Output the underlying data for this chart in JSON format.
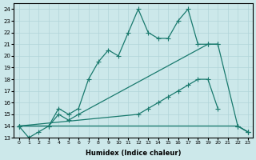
{
  "xlabel": "Humidex (Indice chaleur)",
  "xlim": [
    -0.5,
    23.5
  ],
  "ylim": [
    13,
    24.5
  ],
  "xticks": [
    0,
    1,
    2,
    3,
    4,
    5,
    6,
    7,
    8,
    9,
    10,
    11,
    12,
    13,
    14,
    15,
    16,
    17,
    18,
    19,
    20,
    21,
    22,
    23
  ],
  "yticks": [
    13,
    14,
    15,
    16,
    17,
    18,
    19,
    20,
    21,
    22,
    23,
    24
  ],
  "bg_color": "#cce8ea",
  "grid_color": "#b0d4d8",
  "line_color": "#1a7a6e",
  "s1x": [
    0,
    1,
    2,
    3,
    4,
    5,
    6,
    7,
    8,
    9,
    10,
    11,
    12,
    13,
    14,
    15,
    16,
    17,
    18,
    19,
    20
  ],
  "s1y": [
    14,
    13,
    13.5,
    14,
    15.5,
    15,
    15.5,
    18,
    19.5,
    20.5,
    20,
    22,
    24,
    22,
    21.5,
    21.5,
    23,
    24,
    21,
    21,
    21
  ],
  "s2x": [
    0,
    3,
    4,
    5,
    6,
    19,
    20,
    22,
    23
  ],
  "s2y": [
    14,
    14,
    15,
    14.5,
    15,
    21,
    21,
    14,
    13.5
  ],
  "s3x": [
    0,
    22,
    23
  ],
  "s3y": [
    14,
    14,
    13.5
  ],
  "s4x": [
    0,
    12,
    13,
    14,
    15,
    16,
    17,
    18,
    19,
    20,
    21,
    22,
    23
  ],
  "s4y": [
    14,
    15,
    15.5,
    16,
    16.5,
    17,
    17.5,
    18,
    18,
    15.5,
    null,
    14,
    13.5
  ]
}
